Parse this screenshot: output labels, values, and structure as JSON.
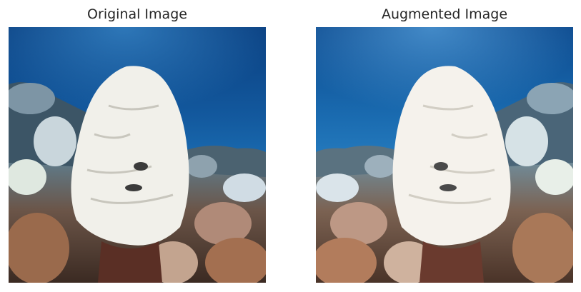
{
  "panels": [
    {
      "title": "Original Image"
    },
    {
      "title": "Augmented Image"
    }
  ],
  "colors": {
    "water_top": "#0a3a78",
    "water_mid": "#1a6bb0",
    "coral_white": "#f2f2ee",
    "coral_brown": "#8a5a3c",
    "reef_dark": "#2a3440"
  }
}
